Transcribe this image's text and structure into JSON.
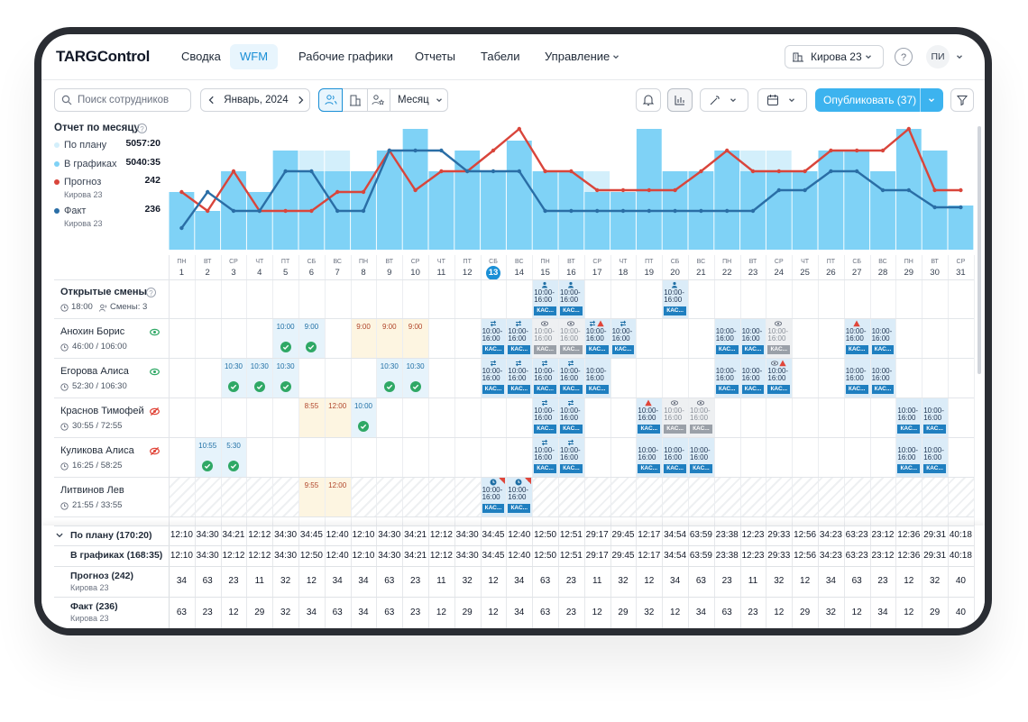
{
  "nav": {
    "logo": "TARGControl",
    "items": [
      "Сводка",
      "WFM",
      "Рабочие графики",
      "Отчеты",
      "Табели",
      "Управление"
    ],
    "active": 1,
    "location": "Кирова 23",
    "help": "?",
    "avatar": "ПИ"
  },
  "toolbar": {
    "search": "Поиск сотрудников",
    "period": "Январь, 2024",
    "view": "Месяц",
    "publish": "Опубликовать (37)"
  },
  "chart_data": {
    "type": "bar",
    "title": "Отчет по месяцу",
    "categories": [
      "1",
      "2",
      "3",
      "4",
      "5",
      "6",
      "7",
      "8",
      "9",
      "10",
      "11",
      "12",
      "13",
      "14",
      "15",
      "16",
      "17",
      "18",
      "19",
      "20",
      "21",
      "22",
      "23",
      "24",
      "25",
      "26",
      "27",
      "28",
      "29",
      "30",
      "31"
    ],
    "weekdays": [
      "ПН",
      "ВТ",
      "СР",
      "ЧТ",
      "ПТ",
      "СБ",
      "ВС",
      "ПН",
      "ВТ",
      "СР",
      "ЧТ",
      "ПТ",
      "СБ",
      "ВС",
      "ПН",
      "ВТ",
      "СР",
      "ЧТ",
      "ПТ",
      "СБ",
      "ВС",
      "ПН",
      "ВТ",
      "СР",
      "ЧТ",
      "ПТ",
      "СБ",
      "ВС",
      "ПН",
      "ВТ",
      "СР"
    ],
    "today": "13",
    "series": [
      {
        "name": "По плану",
        "color": "#d3effb",
        "total": "5057:20",
        "values": [
          64,
          43,
          87,
          64,
          110,
          110,
          110,
          87,
          110,
          134,
          87,
          110,
          87,
          121,
          87,
          87,
          87,
          64,
          134,
          87,
          87,
          110,
          110,
          110,
          87,
          110,
          110,
          87,
          134,
          110,
          49
        ]
      },
      {
        "name": "В графиках",
        "color": "#7fd2f6",
        "total": "5040:35",
        "values": [
          64,
          43,
          87,
          64,
          110,
          87,
          87,
          87,
          110,
          134,
          87,
          110,
          87,
          121,
          87,
          87,
          64,
          64,
          134,
          87,
          87,
          110,
          87,
          87,
          87,
          110,
          110,
          87,
          134,
          110,
          49
        ]
      },
      {
        "name": "Прогноз",
        "type": "line",
        "color": "#d9453b",
        "total": 242,
        "note": "Кирова 23",
        "values": [
          64,
          43,
          87,
          43,
          43,
          43,
          64,
          64,
          110,
          66,
          87,
          87,
          110,
          134,
          87,
          87,
          66,
          66,
          66,
          66,
          87,
          110,
          87,
          87,
          87,
          110,
          110,
          110,
          134,
          66,
          66
        ]
      },
      {
        "name": "Факт",
        "type": "line",
        "color": "#2a6ea6",
        "total": 236,
        "note": "Кирова 23",
        "values": [
          24,
          64,
          43,
          43,
          87,
          87,
          43,
          43,
          110,
          110,
          110,
          87,
          87,
          87,
          43,
          43,
          43,
          43,
          43,
          43,
          43,
          43,
          43,
          66,
          66,
          87,
          87,
          66,
          66,
          47,
          47
        ]
      }
    ]
  },
  "schedule": {
    "open": {
      "title": "Открытые смены",
      "time": "18:00",
      "count": "Смены: 3",
      "shifts": [
        {
          "day": 15,
          "kind": "planned",
          "time": "10:00-16:00",
          "role": "КАС...",
          "icons": "person"
        },
        {
          "day": 16,
          "kind": "planned",
          "time": "10:00-16:00",
          "role": "КАС...",
          "icons": "person"
        },
        {
          "day": 20,
          "kind": "planned",
          "time": "10:00-16:00",
          "role": "КАС...",
          "icons": "person"
        }
      ]
    },
    "employees": [
      {
        "name": "Анохин Борис",
        "hours": "46:00 / 106:00",
        "visible": true,
        "shifts": [
          {
            "day": 5,
            "kind": "done",
            "time": "10:00"
          },
          {
            "day": 6,
            "kind": "done",
            "time": "9:00"
          },
          {
            "day": 8,
            "kind": "pending",
            "time": "9:00"
          },
          {
            "day": 9,
            "kind": "pending",
            "time": "9:00"
          },
          {
            "day": 10,
            "kind": "pending",
            "time": "9:00"
          },
          {
            "day": 13,
            "kind": "planned",
            "time": "10:00-16:00",
            "role": "КАС...",
            "icons": "swap"
          },
          {
            "day": 14,
            "kind": "planned",
            "time": "10:00-16:00",
            "role": "КАС...",
            "icons": "swap"
          },
          {
            "day": 15,
            "kind": "gray",
            "time": "10:00-16:00",
            "role": "КАС...",
            "icons": "eye"
          },
          {
            "day": 16,
            "kind": "gray",
            "time": "10:00-16:00",
            "role": "КАС...",
            "icons": "eye"
          },
          {
            "day": 17,
            "kind": "planned",
            "time": "10:00-16:00",
            "role": "КАС...",
            "icons": "swap+warn"
          },
          {
            "day": 18,
            "kind": "planned",
            "time": "10:00-16:00",
            "role": "КАС...",
            "icons": "swap"
          },
          {
            "day": 22,
            "kind": "planned",
            "time": "10:00-16:00",
            "role": "КАС..."
          },
          {
            "day": 23,
            "kind": "planned",
            "time": "10:00-16:00",
            "role": "КАС..."
          },
          {
            "day": 24,
            "kind": "gray",
            "time": "10:00-16:00",
            "role": "КАС...",
            "icons": "eye"
          },
          {
            "day": 27,
            "kind": "planned",
            "time": "10:00-16:00",
            "role": "КАС...",
            "icons": "warn"
          },
          {
            "day": 28,
            "kind": "planned",
            "time": "10:00-16:00",
            "role": "КАС..."
          }
        ]
      },
      {
        "name": "Егорова Алиса",
        "hours": "52:30 / 106:30",
        "visible": true,
        "shifts": [
          {
            "day": 3,
            "kind": "done",
            "time": "10:30"
          },
          {
            "day": 4,
            "kind": "done",
            "time": "10:30"
          },
          {
            "day": 5,
            "kind": "done",
            "time": "10:30"
          },
          {
            "day": 9,
            "kind": "done",
            "time": "10:30"
          },
          {
            "day": 10,
            "kind": "done",
            "time": "10:30"
          },
          {
            "day": 13,
            "kind": "planned",
            "time": "10:00-16:00",
            "role": "КАС...",
            "icons": "swap"
          },
          {
            "day": 14,
            "kind": "planned",
            "time": "10:00-16:00",
            "role": "КАС...",
            "icons": "swap"
          },
          {
            "day": 15,
            "kind": "planned",
            "time": "10:00-16:00",
            "role": "КАС...",
            "icons": "swap"
          },
          {
            "day": 16,
            "kind": "planned",
            "time": "10:00-16:00",
            "role": "КАС...",
            "icons": "swap"
          },
          {
            "day": 17,
            "kind": "planned",
            "time": "10:00-16:00",
            "role": "КАС..."
          },
          {
            "day": 22,
            "kind": "planned",
            "time": "10:00-16:00",
            "role": "КАС..."
          },
          {
            "day": 23,
            "kind": "planned",
            "time": "10:00-16:00",
            "role": "КАС..."
          },
          {
            "day": 24,
            "kind": "planned",
            "time": "10:00-16:00",
            "role": "КАС...",
            "icons": "eye+warn"
          },
          {
            "day": 27,
            "kind": "planned",
            "time": "10:00-16:00",
            "role": "КАС..."
          },
          {
            "day": 28,
            "kind": "planned",
            "time": "10:00-16:00",
            "role": "КАС..."
          }
        ]
      },
      {
        "name": "Краснов Тимофей",
        "hours": "30:55 / 72:55",
        "visible": false,
        "shifts": [
          {
            "day": 6,
            "kind": "pending",
            "time": "8:55"
          },
          {
            "day": 7,
            "kind": "pending",
            "time": "12:00"
          },
          {
            "day": 8,
            "kind": "done",
            "time": "10:00"
          },
          {
            "day": 15,
            "kind": "planned",
            "time": "10:00-16:00",
            "role": "КАС...",
            "icons": "swap"
          },
          {
            "day": 16,
            "kind": "planned",
            "time": "10:00-16:00",
            "role": "КАС...",
            "icons": "swap"
          },
          {
            "day": 19,
            "kind": "planned",
            "time": "10:00-16:00",
            "role": "КАС...",
            "icons": "warn"
          },
          {
            "day": 20,
            "kind": "gray",
            "time": "10:00-16:00",
            "role": "КАС...",
            "icons": "eye"
          },
          {
            "day": 21,
            "kind": "gray",
            "time": "10:00-16:00",
            "role": "КАС...",
            "icons": "eye"
          },
          {
            "day": 29,
            "kind": "planned",
            "time": "10:00-16:00",
            "role": "КАС..."
          },
          {
            "day": 30,
            "kind": "planned",
            "time": "10:00-16:00",
            "role": "КАС..."
          }
        ]
      },
      {
        "name": "Куликова Алиса",
        "hours": "16:25 / 58:25",
        "visible": false,
        "shifts": [
          {
            "day": 2,
            "kind": "done",
            "time": "10:55"
          },
          {
            "day": 3,
            "kind": "done",
            "time": "5:30"
          },
          {
            "day": 15,
            "kind": "planned",
            "time": "10:00-16:00",
            "role": "КАС...",
            "icons": "swap"
          },
          {
            "day": 16,
            "kind": "planned",
            "time": "10:00-16:00",
            "role": "КАС...",
            "icons": "swap"
          },
          {
            "day": 19,
            "kind": "planned",
            "time": "10:00-16:00",
            "role": "КАС..."
          },
          {
            "day": 20,
            "kind": "planned",
            "time": "10:00-16:00",
            "role": "КАС..."
          },
          {
            "day": 21,
            "kind": "planned",
            "time": "10:00-16:00",
            "role": "КАС..."
          },
          {
            "day": 29,
            "kind": "planned",
            "time": "10:00-16:00",
            "role": "КАС..."
          },
          {
            "day": 30,
            "kind": "planned",
            "time": "10:00-16:00",
            "role": "КАС..."
          }
        ]
      },
      {
        "name": "Литвинов Лев",
        "hours": "21:55 / 33:55",
        "hatched": true,
        "shifts": [
          {
            "day": 6,
            "kind": "pending",
            "time": "9:55"
          },
          {
            "day": 7,
            "kind": "pending",
            "time": "12:00"
          },
          {
            "day": 13,
            "kind": "planned",
            "time": "10:00-16:00",
            "role": "КАС...",
            "icons": "clock",
            "flag": true
          },
          {
            "day": 14,
            "kind": "planned",
            "time": "10:00-16:00",
            "role": "КАС...",
            "icons": "clock",
            "flag": true
          }
        ]
      }
    ]
  },
  "summary": {
    "rows": [
      {
        "label": "По плану (170:20)",
        "values": [
          "12:10",
          "34:30",
          "34:21",
          "12:12",
          "34:30",
          "34:45",
          "12:40",
          "12:10",
          "34:30",
          "34:21",
          "12:12",
          "34:30",
          "34:45",
          "12:40",
          "12:50",
          "12:51",
          "29:17",
          "29:45",
          "12:17",
          "34:54",
          "63:59",
          "23:38",
          "12:23",
          "29:33",
          "12:56",
          "34:23",
          "63:23",
          "23:12",
          "12:36",
          "29:31",
          "40:18"
        ]
      },
      {
        "label": "В графиках (168:35)",
        "values": [
          "12:10",
          "34:30",
          "12:12",
          "12:12",
          "34:30",
          "12:50",
          "12:40",
          "12:10",
          "34:30",
          "34:21",
          "12:12",
          "34:30",
          "34:45",
          "12:40",
          "12:50",
          "12:51",
          "29:17",
          "29:45",
          "12:17",
          "34:54",
          "63:59",
          "23:38",
          "12:23",
          "29:33",
          "12:56",
          "34:23",
          "63:23",
          "23:12",
          "12:36",
          "29:31",
          "40:18"
        ]
      },
      {
        "label": "Прогноз (242)",
        "note": "Кирова 23",
        "values": [
          34,
          63,
          23,
          11,
          32,
          12,
          34,
          34,
          63,
          23,
          11,
          32,
          12,
          34,
          63,
          23,
          11,
          32,
          12,
          34,
          63,
          23,
          11,
          32,
          12,
          34,
          63,
          23,
          12,
          32,
          40
        ]
      },
      {
        "label": "Факт (236)",
        "note": "Кирова 23",
        "values": [
          63,
          23,
          12,
          29,
          32,
          34,
          63,
          34,
          63,
          23,
          12,
          29,
          12,
          34,
          63,
          23,
          12,
          29,
          32,
          12,
          34,
          63,
          23,
          12,
          29,
          32,
          12,
          34,
          12,
          29,
          40
        ]
      }
    ]
  }
}
